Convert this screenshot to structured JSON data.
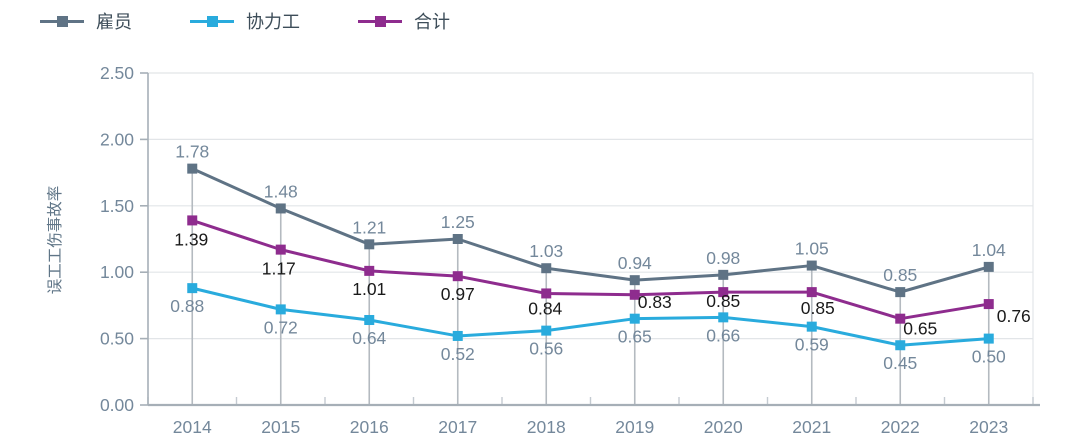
{
  "legend": {
    "items": [
      {
        "label": "雇员",
        "name": "employees"
      },
      {
        "label": "协力工",
        "name": "contractors"
      },
      {
        "label": "合计",
        "name": "total"
      }
    ]
  },
  "colors": {
    "employees": "#5f7385",
    "contractors": "#29abdd",
    "total": "#8e2c8e",
    "axis_line": "#a6afb7",
    "gridline": "#e2e5e8",
    "drop_line": "#b4bac0",
    "boundary_tick": "#c4cbd1",
    "tick_label": "#74889b",
    "data_label_light": "#74889b",
    "data_label_dark": "#1a1a1a",
    "legend_text": "#3d4d59",
    "axis_title": "#5f7587"
  },
  "chart_data": {
    "type": "line",
    "title": "",
    "xlabel": "",
    "ylabel": "误工工伤事故率",
    "categories": [
      "2014",
      "2015",
      "2016",
      "2017",
      "2018",
      "2019",
      "2020",
      "2021",
      "2022",
      "2023"
    ],
    "series": [
      {
        "name": "雇员",
        "color": "#5f7385",
        "values": [
          1.78,
          1.48,
          1.21,
          1.25,
          1.03,
          0.94,
          0.98,
          1.05,
          0.85,
          1.04
        ]
      },
      {
        "name": "协力工",
        "color": "#29abdd",
        "values": [
          0.88,
          0.72,
          0.64,
          0.52,
          0.56,
          0.65,
          0.66,
          0.59,
          0.45,
          0.5
        ]
      },
      {
        "name": "合计",
        "color": "#8e2c8e",
        "values": [
          1.39,
          1.17,
          1.01,
          0.97,
          0.84,
          0.83,
          0.85,
          0.85,
          0.65,
          0.76
        ]
      }
    ],
    "ylim": [
      0,
      2.5
    ],
    "ytick_step": 0.5,
    "ytick_labels": [
      "0.00",
      "0.50",
      "1.00",
      "1.50",
      "2.00",
      "2.50"
    ],
    "grid": true,
    "legend_position": "top",
    "marker": "square",
    "drop_lines": true
  }
}
